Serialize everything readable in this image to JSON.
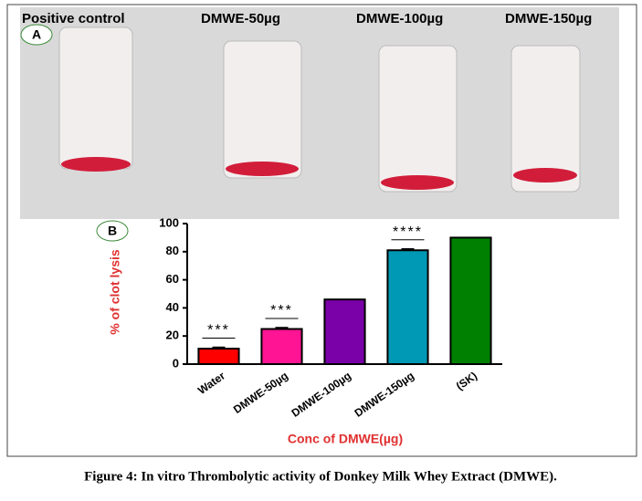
{
  "panel_a": {
    "label": "A",
    "tube_labels": [
      "Positive control",
      "DMWE-50µg",
      "DMWE-100µg",
      "DMWE-150µg"
    ]
  },
  "chart_data": {
    "type": "bar",
    "panel_label": "B",
    "categories": [
      "Water",
      "DMWE-50µg",
      "DMWE-100µg",
      "DMWE-150µg",
      "(SK)"
    ],
    "values": [
      11,
      25,
      46,
      81,
      90
    ],
    "errors": [
      1,
      1,
      0,
      1,
      0
    ],
    "colors": [
      "#ff0000",
      "#ff1493",
      "#7a00a8",
      "#0099b5",
      "#008000"
    ],
    "annotations": [
      "***",
      "***",
      null,
      "****",
      null
    ],
    "ylabel": "% of clot lysis",
    "xlabel": "Conc of DMWE(µg)",
    "ylim": [
      0,
      100
    ],
    "yticks": [
      0,
      20,
      40,
      60,
      80,
      100
    ],
    "grid": false
  },
  "caption": "Figure 4: In vitro Thrombolytic  activity of Donkey Milk Whey Extract (DMWE)."
}
